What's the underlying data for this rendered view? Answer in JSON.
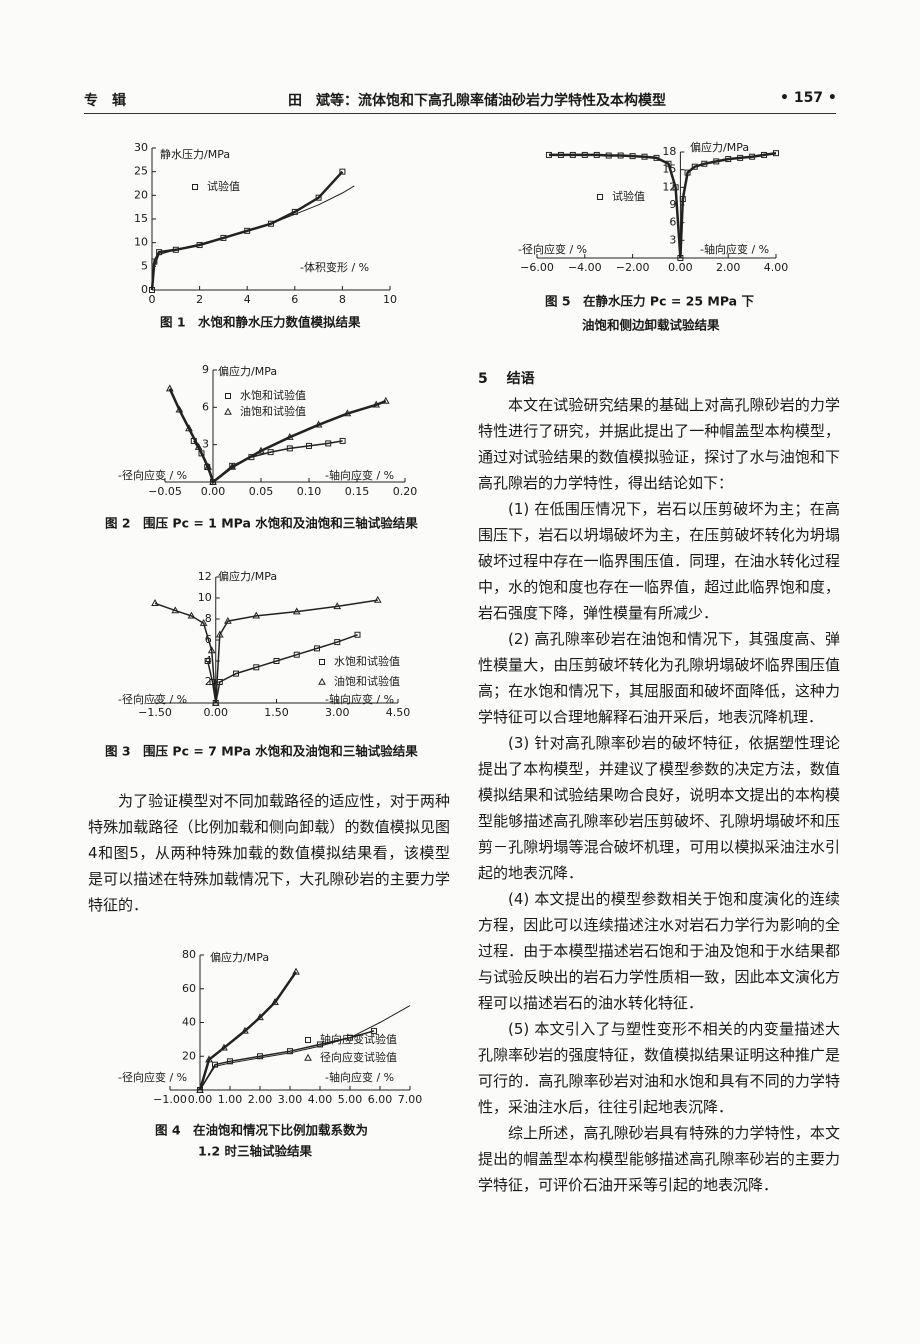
{
  "header": {
    "left": "专　辑",
    "center": "田　斌等：流体饱和下高孔隙率储油砂岩力学特性及本构模型",
    "page": "• 157 •"
  },
  "figures": [
    {
      "chart_data": {
        "type": "line",
        "ylabel": "静水压力/MPa",
        "xlabel": "-体积变形 / %",
        "xlim": [
          0,
          10
        ],
        "ylim": [
          0,
          30
        ],
        "xticks": [
          0,
          2,
          4,
          6,
          8,
          10
        ],
        "yticks": [
          0,
          5,
          10,
          15,
          20,
          25,
          30
        ],
        "series": [
          {
            "name": "试验值",
            "marker": "square",
            "line_width": 2.5,
            "color": "#222",
            "x": [
              0,
              0.1,
              0.3,
              1,
              2,
              3,
              4,
              5,
              6,
              7,
              8
            ],
            "values": [
              0,
              6,
              8,
              8.5,
              9.5,
              11,
              12.5,
              14,
              16.5,
              19.5,
              25
            ]
          },
          {
            "marker": "none",
            "line_width": 1,
            "color": "#222",
            "x": [
              0,
              0.1,
              0.3,
              1,
              2,
              3,
              4,
              5,
              6,
              7,
              8,
              8.5
            ],
            "values": [
              0,
              5,
              7.5,
              8.5,
              9.7,
              11,
              12.5,
              14,
              16,
              18,
              20.5,
              22
            ]
          }
        ]
      },
      "caption": [
        "图 1　水饱和静水压力数值模拟结果"
      ]
    },
    {
      "chart_data": {
        "type": "line",
        "ylabel": "偏应力/MPa",
        "xlabel": "-轴向应变 / %",
        "xlabel_left": "-径向应变 / %",
        "xlim": [
          -0.05,
          0.2
        ],
        "ylim": [
          0,
          9
        ],
        "xticks": [
          {
            "value": -0.05,
            "label": "−0.05"
          },
          {
            "value": 0,
            "label": "0.00"
          },
          {
            "value": 0.05,
            "label": "0.05"
          },
          {
            "value": 0.1,
            "label": "0.10"
          },
          {
            "value": 0.15,
            "label": "0.15"
          },
          {
            "value": 0.2,
            "label": "0.20"
          }
        ],
        "yticks": [
          3,
          6,
          9
        ],
        "series": [
          {
            "name": "水饱和试验值",
            "marker": "square",
            "line_width": 1.5,
            "color": "#222",
            "x": [
              -0.02,
              -0.012,
              -0.006,
              0,
              0.02,
              0.04,
              0.06,
              0.08,
              0.1,
              0.12,
              0.135
            ],
            "values": [
              3.3,
              2.3,
              1.2,
              0,
              1.3,
              2,
              2.4,
              2.7,
              2.9,
              3.1,
              3.3
            ]
          },
          {
            "name": "油饱和试验值",
            "marker": "triangle",
            "line_width": 2.5,
            "color": "#222",
            "x": [
              -0.045,
              -0.035,
              -0.025,
              -0.015,
              -0.005,
              0,
              0.02,
              0.05,
              0.08,
              0.11,
              0.14,
              0.17,
              0.18
            ],
            "values": [
              7.5,
              5.8,
              4.3,
              2.8,
              1.2,
              0,
              1.2,
              2.5,
              3.6,
              4.6,
              5.5,
              6.2,
              6.5
            ]
          }
        ]
      },
      "caption": [
        "图 2　围压 Pc = 1 MPa 水饱和及油饱和三轴试验结果"
      ]
    },
    {
      "chart_data": {
        "type": "line",
        "ylabel": "偏应力/MPa",
        "xlabel": "-轴向应变 / %",
        "xlabel_left": "-径向应变 / %",
        "xlim": [
          -1.5,
          4.5
        ],
        "ylim": [
          0,
          12
        ],
        "xticks": [
          {
            "value": -1.5,
            "label": "−1.50"
          },
          {
            "value": 0,
            "label": "0.00"
          },
          {
            "value": 1.5,
            "label": "1.50"
          },
          {
            "value": 3,
            "label": "3.00"
          },
          {
            "value": 4.5,
            "label": "4.50"
          }
        ],
        "yticks": [
          2,
          4,
          6,
          8,
          10,
          12
        ],
        "series": [
          {
            "name": "水饱和试验值",
            "marker": "square",
            "line_width": 1.5,
            "color": "#222",
            "x": [
              -0.2,
              -0.08,
              0,
              0.1,
              0.5,
              1,
              1.5,
              2,
              2.5,
              3,
              3.5
            ],
            "values": [
              4,
              2,
              0,
              2,
              2.8,
              3.4,
              4,
              4.6,
              5.2,
              5.8,
              6.5
            ]
          },
          {
            "name": "油饱和试验值",
            "marker": "triangle",
            "line_width": 1.5,
            "color": "#222",
            "x": [
              -1.5,
              -1,
              -0.6,
              -0.3,
              -0.1,
              0,
              0.1,
              0.3,
              1,
              2,
              3,
              4
            ],
            "values": [
              9.5,
              8.8,
              8.3,
              7.6,
              5,
              0,
              6.5,
              7.8,
              8.3,
              8.7,
              9.2,
              9.8
            ]
          }
        ]
      },
      "caption": [
        "图 3　围压 Pc = 7 MPa 水饱和及油饱和三轴试验结果"
      ]
    },
    {
      "chart_data": {
        "type": "line",
        "ylabel": "偏应力/MPa",
        "xlabel": "-轴向应变 / %",
        "xlabel_left": "-径向应变 / %",
        "xlim": [
          -1,
          7
        ],
        "ylim": [
          0,
          80
        ],
        "xticks": [
          {
            "value": -1,
            "label": "−1.00"
          },
          {
            "value": 0,
            "label": "0.00"
          },
          {
            "value": 1,
            "label": "1.00"
          },
          {
            "value": 2,
            "label": "2.00"
          },
          {
            "value": 3,
            "label": "3.00"
          },
          {
            "value": 4,
            "label": "4.00"
          },
          {
            "value": 5,
            "label": "5.00"
          },
          {
            "value": 6,
            "label": "6.00"
          },
          {
            "value": 7,
            "label": "7.00"
          }
        ],
        "yticks": [
          20,
          40,
          60,
          80
        ],
        "series": [
          {
            "name": "轴向应变试验值",
            "marker": "square",
            "line_width": 1.5,
            "color": "#222",
            "x": [
              0,
              0.5,
              1,
              2,
              3,
              4,
              5,
              5.8
            ],
            "values": [
              0,
              15,
              17,
              20,
              23,
              27,
              31,
              35
            ]
          },
          {
            "name": "径向应变试验值",
            "marker": "triangle",
            "line_width": 2.5,
            "color": "#222",
            "x": [
              0,
              0.3,
              0.8,
              1.5,
              2,
              2.5,
              3.2
            ],
            "values": [
              0,
              18,
              25,
              35,
              43,
              52,
              70
            ]
          },
          {
            "marker": "none",
            "line_width": 1,
            "color": "#222",
            "x": [
              0,
              0.5,
              1,
              2,
              3,
              4,
              5,
              6,
              7
            ],
            "values": [
              0,
              14,
              16,
              19,
              22,
              26,
              31,
              40,
              50
            ]
          }
        ]
      },
      "caption": [
        "图 4　在油饱和情况下比例加载系数为",
        "1.2 时三轴试验结果"
      ]
    },
    {
      "chart_data": {
        "type": "line",
        "ylabel": "偏应力/MPa",
        "xlabel": "-轴向应变 / %",
        "xlabel_left": "-径向应变 / %",
        "xlim": [
          -6,
          4
        ],
        "ylim": [
          0,
          18
        ],
        "xticks": [
          {
            "value": -6,
            "label": "−6.00"
          },
          {
            "value": -4,
            "label": "−4.00"
          },
          {
            "value": -2,
            "label": "−2.00"
          },
          {
            "value": 0,
            "label": "0.00"
          },
          {
            "value": 2,
            "label": "2.00"
          },
          {
            "value": 4,
            "label": "4.00"
          }
        ],
        "yticks": [
          3,
          6,
          9,
          12,
          15,
          18
        ],
        "series": [
          {
            "name": "试验值",
            "marker": "square",
            "line_width": 2.5,
            "color": "#222",
            "x": [
              -5.5,
              -5,
              -4.5,
              -4,
              -3.5,
              -3,
              -2.5,
              -2,
              -1.5,
              -1,
              -0.5,
              -0.2,
              0,
              0.1,
              0.3,
              0.6,
              1,
              1.5,
              2,
              2.5,
              3,
              3.5,
              4
            ],
            "values": [
              17.5,
              17.5,
              17.5,
              17.5,
              17.5,
              17.4,
              17.4,
              17.3,
              17.2,
              17,
              16,
              12,
              0,
              10,
              14.5,
              15.5,
              16,
              16.4,
              16.8,
              17,
              17.2,
              17.5,
              17.8
            ]
          }
        ]
      },
      "caption": [
        "图 5　在静水压力 Pc = 25 MPa 下",
        "油饱和侧边卸载试验结果"
      ]
    }
  ],
  "body_left": [
    "为了验证模型对不同加载路径的适应性，对于两种特殊加载路径（比例加载和侧向卸载）的数值模拟见图4和图5，从两种特殊加载的数值模拟结果看，该模型是可以描述在特殊加载情况下，大孔隙砂岩的主要力学特征的．"
  ],
  "section": {
    "number": "5",
    "title": "结语"
  },
  "body_right": [
    "本文在试验研究结果的基础上对高孔隙砂岩的力学特性进行了研究，并据此提出了一种帽盖型本构模型，通过对试验结果的数值模拟验证，探讨了水与油饱和下高孔隙岩的力学特性，得出结论如下：",
    "(1) 在低围压情况下，岩石以压剪破坏为主；在高围压下，岩石以坍塌破坏为主，在压剪破坏转化为坍塌破坏过程中存在一临界围压值．同理，在油水转化过程中，水的饱和度也存在一临界值，超过此临界饱和度，岩石强度下降，弹性模量有所减少．",
    "(2) 高孔隙率砂岩在油饱和情况下，其强度高、弹性模量大，由压剪破坏转化为孔隙坍塌破坏临界围压值高；在水饱和情况下，其屈服面和破坏面降低，这种力学特征可以合理地解释石油开采后，地表沉降机理．",
    "(3) 针对高孔隙率砂岩的破坏特征，依据塑性理论提出了本构模型，并建议了模型参数的决定方法，数值模拟结果和试验结果吻合良好，说明本文提出的本构模型能够描述高孔隙率砂岩压剪破坏、孔隙坍塌破坏和压剪－孔隙坍塌等混合破坏机理，可用以模拟采油注水引起的地表沉降．",
    "(4) 本文提出的模型参数相关于饱和度演化的连续方程，因此可以连续描述注水对岩石力学行为影响的全过程．由于本模型描述岩石饱和于油及饱和于水结果都与试验反映出的岩石力学性质相一致，因此本文演化方程可以描述岩石的油水转化特征．",
    "(5) 本文引入了与塑性变形不相关的内变量描述大孔隙率砂岩的强度特征，数值模拟结果证明这种推广是可行的．高孔隙率砂岩对油和水饱和具有不同的力学特性，采油注水后，往往引起地表沉降．",
    "综上所述，高孔隙砂岩具有特殊的力学特性，本文提出的帽盖型本构模型能够描述高孔隙率砂岩的主要力学特征，可评价石油开采等引起的地表沉降．"
  ]
}
